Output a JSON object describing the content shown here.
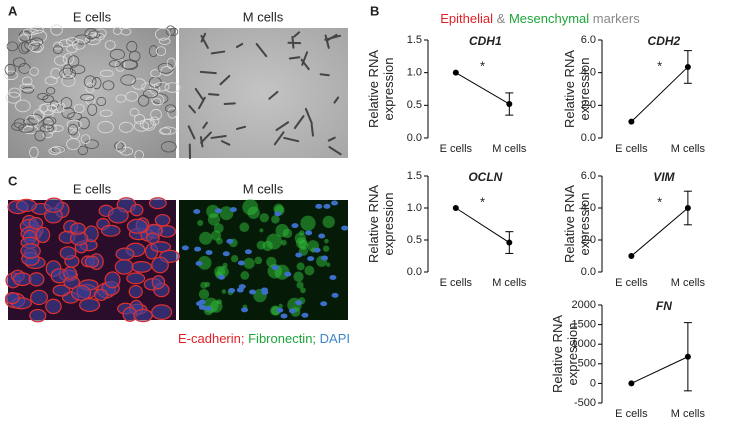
{
  "panels": [
    "A",
    "B",
    "C"
  ],
  "panel_a": {
    "labels": [
      "E cells",
      "M cells"
    ]
  },
  "panel_c": {
    "labels": [
      "E cells",
      "M cells"
    ],
    "legend": [
      {
        "text": "E-cadherin;",
        "color": "#e21f26"
      },
      {
        "text": "Fibronectin;",
        "color": "#1ea53a"
      },
      {
        "text": "DAPI",
        "color": "#3f86c6"
      }
    ]
  },
  "panel_b": {
    "title": [
      {
        "text": "Epithelial",
        "color": "#e21f26"
      },
      {
        "text": "&",
        "color": "#888888"
      },
      {
        "text": "Mesenchymal",
        "color": "#1ea53a"
      },
      {
        "text": "markers",
        "color": "#888888"
      }
    ]
  },
  "chart_data": [
    {
      "type": "line",
      "title": "CDH1",
      "title_color": "#e21f26",
      "ylabel": [
        "Relative RNA",
        "expression"
      ],
      "categories": [
        "E cells",
        "M cells"
      ],
      "series": [
        {
          "color": "#000000",
          "values": [
            1.0,
            0.52
          ],
          "errors": [
            null,
            0.17
          ]
        }
      ],
      "ylim": [
        0,
        1.5
      ],
      "yticks": [
        {
          "value": 0,
          "label": "0.0"
        },
        {
          "value": 0.5,
          "label": "0.5"
        },
        {
          "value": 1,
          "label": "1.0"
        },
        {
          "value": 1.5,
          "label": "1.5"
        }
      ],
      "annotation": "*"
    },
    {
      "type": "line",
      "title": "CDH2",
      "title_color": "#1ea53a",
      "ylabel": [
        "Relative RNA",
        "expression"
      ],
      "categories": [
        "E cells",
        "M cells"
      ],
      "series": [
        {
          "color": "#000000",
          "values": [
            1.0,
            4.35
          ],
          "errors": [
            null,
            1.0
          ]
        }
      ],
      "ylim": [
        0,
        6
      ],
      "yticks": [
        {
          "value": 0,
          "label": "0.0"
        },
        {
          "value": 2,
          "label": "2.0"
        },
        {
          "value": 4,
          "label": "4.0"
        },
        {
          "value": 6,
          "label": "6.0"
        }
      ],
      "annotation": "*"
    },
    {
      "type": "line",
      "title": "OCLN",
      "title_color": "#e21f26",
      "ylabel": [
        "Relative RNA",
        "expression"
      ],
      "categories": [
        "E cells",
        "M cells"
      ],
      "series": [
        {
          "color": "#000000",
          "values": [
            1.0,
            0.46
          ],
          "errors": [
            null,
            0.17
          ]
        }
      ],
      "ylim": [
        0,
        1.5
      ],
      "yticks": [
        {
          "value": 0,
          "label": "0.0"
        },
        {
          "value": 0.5,
          "label": "0.5"
        },
        {
          "value": 1,
          "label": "1.0"
        },
        {
          "value": 1.5,
          "label": "1.5"
        }
      ],
      "annotation": "*"
    },
    {
      "type": "line",
      "title": "VIM",
      "title_color": "#1ea53a",
      "ylabel": [
        "Relative RNA",
        "expression"
      ],
      "categories": [
        "E cells",
        "M cells"
      ],
      "series": [
        {
          "color": "#000000",
          "values": [
            1.0,
            4.0
          ],
          "errors": [
            null,
            1.05
          ]
        }
      ],
      "ylim": [
        0,
        6
      ],
      "yticks": [
        {
          "value": 0,
          "label": "0.0"
        },
        {
          "value": 2,
          "label": "2.0"
        },
        {
          "value": 4,
          "label": "4.0"
        },
        {
          "value": 6,
          "label": "6.0"
        }
      ],
      "annotation": "*"
    },
    {
      "type": "line",
      "title": "FN",
      "title_color": "#1ea53a",
      "ylabel": [
        "Relative RNA",
        "expression"
      ],
      "categories": [
        "E cells",
        "M cells"
      ],
      "series": [
        {
          "color": "#000000",
          "values": [
            1,
            680
          ],
          "errors": [
            null,
            870
          ]
        }
      ],
      "ylim": [
        -500,
        2000
      ],
      "yticks": [
        -500,
        0,
        500,
        1000,
        1500,
        2000
      ]
    }
  ]
}
